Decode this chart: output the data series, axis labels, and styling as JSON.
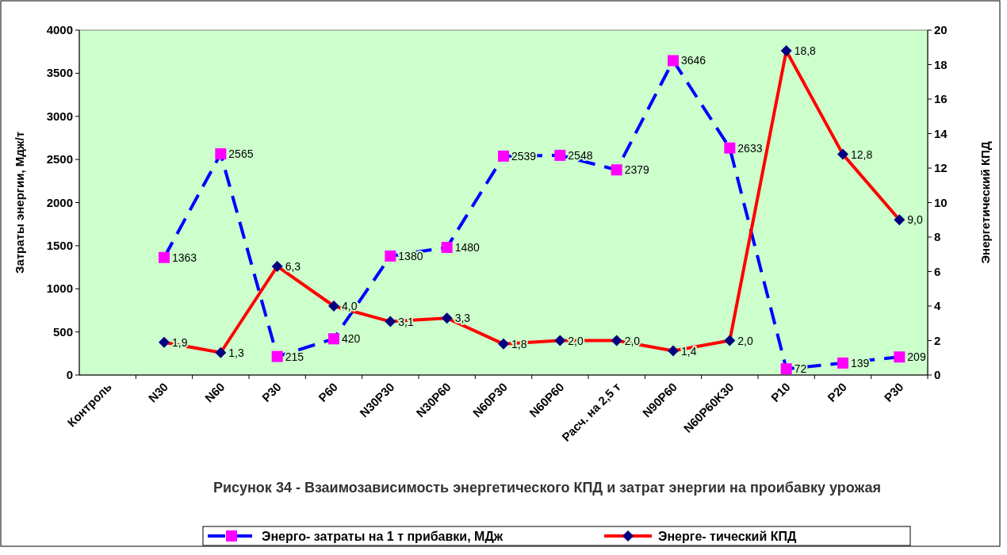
{
  "chart_data": {
    "type": "line",
    "title": "Рисунок 34 - Взаимозависимость энергетического КПД и затрат энергии на проибавку урожая",
    "ylabel": "Затраты энергии, Мдж/т",
    "y2label": "Энергетический КПД",
    "categories": [
      "Контроль",
      "N30",
      "N60",
      "P30",
      "P60",
      "N30P30",
      "N30P60",
      "N60P30",
      "N60P60",
      "Расч. на 2,5 т",
      "N90P60",
      "N60P60K30",
      "P10",
      "P20",
      "P30"
    ],
    "series": [
      {
        "name": "Энерго- затраты на 1 т прибавки, МДж",
        "color": "#0000ff",
        "line_style": "dashed",
        "marker": "square",
        "values": [
          null,
          1363,
          2565,
          215,
          420,
          1380,
          1480,
          2539,
          2548,
          2379,
          3646,
          2633,
          72,
          139,
          209
        ],
        "value_labels": [
          null,
          "1363",
          "2565",
          "215",
          "420",
          "1380",
          "1480",
          "2539",
          "2548",
          "2379",
          "3646",
          "2633",
          "72",
          "139",
          "209"
        ]
      },
      {
        "name": "Энерге- тический КПД",
        "color": "#ff0000",
        "line_style": "solid",
        "marker": "diamond",
        "axis": "y2",
        "values": [
          null,
          1.9,
          1.3,
          6.3,
          4.0,
          3.1,
          3.3,
          1.8,
          2.0,
          2.0,
          1.4,
          2.0,
          18.8,
          12.8,
          9.0
        ],
        "value_labels": [
          null,
          "1,9",
          "1,3",
          "6,3",
          "4,0",
          "3,1",
          "3,3",
          "1,8",
          "2,0",
          "2,0",
          "1,4",
          "2,0",
          "18,8",
          "12,8",
          "9,0"
        ]
      }
    ],
    "ylim": [
      0,
      4000
    ],
    "yticks": [
      0,
      500,
      1000,
      1500,
      2000,
      2500,
      3000,
      3500,
      4000
    ],
    "y2lim": [
      0,
      20
    ],
    "y2ticks": [
      0,
      2,
      4,
      6,
      8,
      10,
      12,
      14,
      16,
      18,
      20
    ],
    "grid": false,
    "legend": "bottom"
  }
}
